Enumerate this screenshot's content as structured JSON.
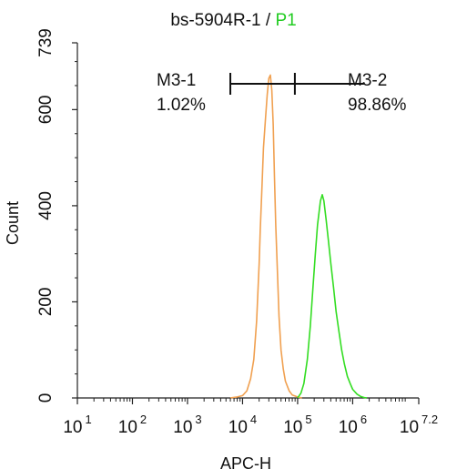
{
  "chart_data": {
    "type": "line",
    "title": "bs-5904R-1",
    "title_separator": " / ",
    "title_gate": "P1",
    "xlabel": "APC-H",
    "ylabel": "Count",
    "x_scale": "log10",
    "xlim": [
      10,
      15848932
    ],
    "ylim": [
      0,
      739
    ],
    "x_ticks": [
      {
        "base": "10",
        "exp": "1"
      },
      {
        "base": "10",
        "exp": "2"
      },
      {
        "base": "10",
        "exp": "3"
      },
      {
        "base": "10",
        "exp": "4"
      },
      {
        "base": "10",
        "exp": "5"
      },
      {
        "base": "10",
        "exp": "6"
      },
      {
        "base": "10",
        "exp": "7.2"
      }
    ],
    "y_ticks": [
      "0",
      "200",
      "400",
      "600",
      "739"
    ],
    "grid": false,
    "markers": [
      {
        "name": "M3-1",
        "percent": "1.02%"
      },
      {
        "name": "M3-2",
        "percent": "98.86%"
      }
    ],
    "marker_divider_x": 89125,
    "series": [
      {
        "color": "#f0a050",
        "x": [
          6000,
          8000,
          10000,
          12000,
          14000,
          16000,
          18000,
          20000,
          21000,
          22500,
          24000,
          26000,
          28000,
          30000,
          32000,
          34000,
          36000,
          38000,
          40000,
          43000,
          46000,
          50000,
          55000,
          60000,
          70000,
          80000,
          100000,
          120000
        ],
        "y": [
          0,
          2,
          5,
          15,
          40,
          80,
          160,
          280,
          350,
          440,
          520,
          580,
          630,
          665,
          672,
          640,
          570,
          460,
          360,
          260,
          170,
          100,
          60,
          35,
          15,
          6,
          2,
          0
        ]
      },
      {
        "color": "#33dd22",
        "x": [
          100000,
          115000,
          130000,
          150000,
          170000,
          190000,
          210000,
          230000,
          260000,
          280000,
          300000,
          330000,
          360000,
          400000,
          450000,
          500000,
          560000,
          630000,
          710000,
          800000,
          900000,
          1000000,
          1200000,
          1400000,
          1600000,
          1800000
        ],
        "y": [
          0,
          10,
          30,
          80,
          150,
          230,
          300,
          360,
          410,
          423,
          410,
          370,
          330,
          280,
          230,
          180,
          140,
          100,
          70,
          45,
          30,
          18,
          8,
          3,
          1,
          0
        ]
      }
    ]
  }
}
